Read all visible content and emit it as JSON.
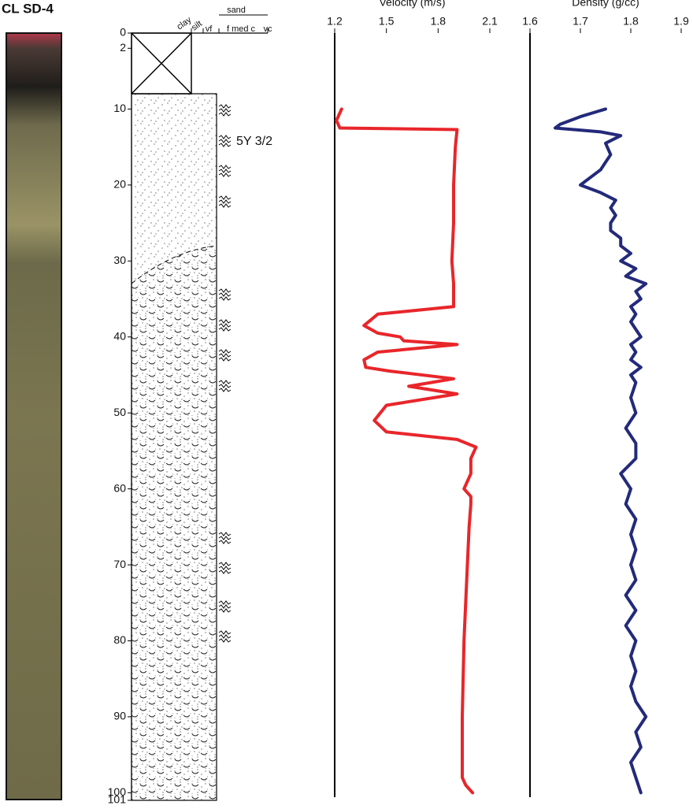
{
  "chart_data": [
    {
      "type": "log",
      "title": "CL SD-4",
      "ylim": [
        0,
        101
      ],
      "y_reversed": true,
      "yticks": [
        0,
        2,
        10,
        20,
        30,
        40,
        50,
        60,
        70,
        80,
        90,
        100,
        101
      ],
      "column_group": "sand",
      "column_labels": [
        "clay",
        "silt",
        "vf",
        "f med c",
        "vc"
      ],
      "annotation": "5Y 3/2"
    },
    {
      "type": "line",
      "title": "Velocity (m/s)",
      "color": "#e8262a",
      "xlim": [
        1.2,
        2.1
      ],
      "xticks": [
        1.2,
        1.5,
        1.8,
        2.1
      ],
      "ylim": [
        0,
        101
      ],
      "y_reversed": true,
      "y": [
        10,
        11.5,
        12.5,
        12.7,
        15,
        20,
        25,
        30,
        33,
        36,
        37,
        38.5,
        39.5,
        40,
        40.5,
        41,
        42,
        43,
        44,
        44.5,
        45.5,
        46.5,
        47.5,
        49,
        51,
        52.5,
        53.5,
        54.5,
        56,
        58,
        60,
        61,
        62,
        65,
        70,
        80,
        90,
        98,
        99,
        100
      ],
      "values": [
        1.24,
        1.21,
        1.23,
        1.91,
        1.9,
        1.89,
        1.89,
        1.88,
        1.89,
        1.89,
        1.45,
        1.37,
        1.45,
        1.58,
        1.6,
        1.91,
        1.45,
        1.37,
        1.38,
        1.52,
        1.89,
        1.63,
        1.91,
        1.5,
        1.43,
        1.5,
        1.91,
        2.02,
        1.99,
        1.99,
        1.95,
        1.99,
        1.99,
        1.98,
        1.97,
        1.95,
        1.94,
        1.94,
        1.96,
        2.0
      ]
    },
    {
      "type": "line",
      "title": "Density (g/cc)",
      "color": "#232a7a",
      "xlim": [
        1.6,
        1.9
      ],
      "xticks": [
        1.6,
        1.7,
        1.8,
        1.9
      ],
      "ylim": [
        0,
        101
      ],
      "y_reversed": true,
      "y": [
        10,
        11,
        12,
        12.5,
        13,
        13.5,
        14.5,
        16,
        17,
        18,
        19,
        20,
        21,
        22,
        23,
        24,
        25,
        26,
        27,
        28,
        29,
        30,
        31,
        32,
        33,
        34,
        35,
        36,
        37,
        38,
        39,
        40,
        41,
        42,
        43,
        44,
        45,
        46,
        48,
        50,
        52,
        54,
        56,
        58,
        60,
        62,
        64,
        66,
        68,
        70,
        72,
        74,
        76,
        78,
        80,
        82,
        84,
        86,
        88,
        90,
        92,
        94,
        96,
        98,
        100
      ],
      "values": [
        1.75,
        1.7,
        1.66,
        1.65,
        1.74,
        1.78,
        1.75,
        1.76,
        1.75,
        1.74,
        1.72,
        1.7,
        1.74,
        1.77,
        1.76,
        1.77,
        1.76,
        1.76,
        1.78,
        1.78,
        1.8,
        1.78,
        1.81,
        1.79,
        1.83,
        1.81,
        1.82,
        1.8,
        1.81,
        1.8,
        1.81,
        1.82,
        1.8,
        1.81,
        1.8,
        1.82,
        1.8,
        1.81,
        1.8,
        1.81,
        1.79,
        1.81,
        1.81,
        1.78,
        1.8,
        1.79,
        1.81,
        1.8,
        1.81,
        1.8,
        1.81,
        1.79,
        1.81,
        1.79,
        1.81,
        1.8,
        1.81,
        1.8,
        1.81,
        1.83,
        1.81,
        1.82,
        1.8,
        1.81,
        1.82
      ]
    }
  ]
}
